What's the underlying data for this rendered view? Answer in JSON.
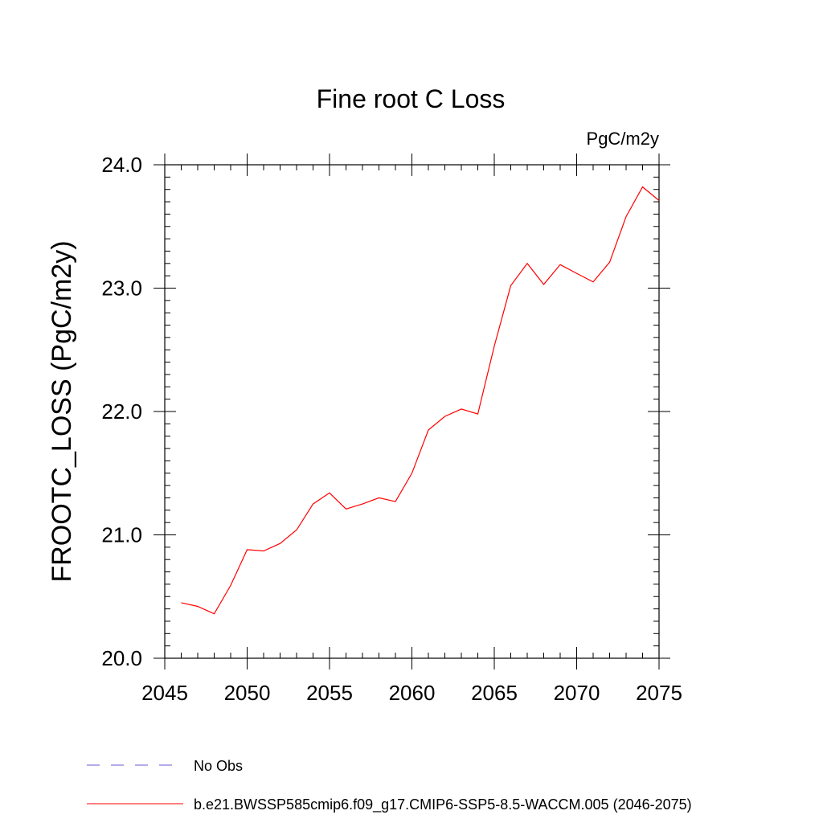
{
  "chart_data": {
    "type": "line",
    "title": "Fine root C Loss",
    "units_label": "PgC/m2y",
    "ylabel": "FROOTC_LOSS  (PgC/m2y)",
    "xlabel": "",
    "xlim": [
      2045,
      2075
    ],
    "ylim": [
      20.0,
      24.0
    ],
    "x_ticks": [
      "2045",
      "2050",
      "2055",
      "2060",
      "2065",
      "2070",
      "2075"
    ],
    "y_ticks": [
      "20.0",
      "21.0",
      "22.0",
      "23.0",
      "24.0"
    ],
    "grid": false,
    "legend_position": "bottom",
    "series": [
      {
        "name": "b.e21.BWSSP585cmip6.f09_g17.CMIP6-SSP5-8.5-WACCM.005 (2046-2075)",
        "color": "#ff0000",
        "style": "solid",
        "x": [
          2046,
          2047,
          2048,
          2049,
          2050,
          2051,
          2052,
          2053,
          2054,
          2055,
          2056,
          2057,
          2058,
          2059,
          2060,
          2061,
          2062,
          2063,
          2064,
          2065,
          2066,
          2067,
          2068,
          2069,
          2070,
          2071,
          2072,
          2073,
          2074,
          2075
        ],
        "values": [
          20.45,
          20.42,
          20.36,
          20.59,
          20.88,
          20.87,
          20.93,
          21.04,
          21.25,
          21.34,
          21.21,
          21.25,
          21.3,
          21.27,
          21.5,
          21.85,
          21.96,
          22.02,
          21.98,
          22.53,
          23.02,
          23.2,
          23.03,
          23.19,
          23.12,
          23.05,
          23.21,
          23.58,
          23.82,
          23.71
        ]
      }
    ],
    "legend": [
      {
        "label": "No Obs",
        "color": "#6a5acd",
        "style": "dashed"
      },
      {
        "label": "b.e21.BWSSP585cmip6.f09_g17.CMIP6-SSP5-8.5-WACCM.005 (2046-2075)",
        "color": "#ff0000",
        "style": "solid"
      }
    ]
  }
}
